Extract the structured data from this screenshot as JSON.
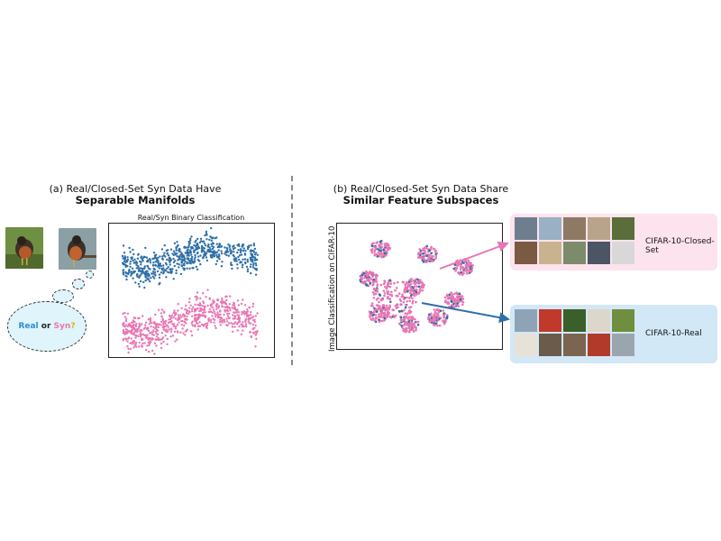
{
  "panel_a": {
    "title_line1": "(a) Real/Closed-Set Syn Data Have",
    "title_line2": "Separable Manifolds",
    "plot_title": "Real/Syn Binary Classification",
    "bubble": {
      "real": "Real",
      "or": "or",
      "syn": "Syn",
      "q": "?"
    }
  },
  "panel_b": {
    "title_line1": "(b) Real/Closed-Set Syn Data Share",
    "title_line2": "Similar Feature Subspaces",
    "axis_label": "Image Classification on CIFAR-10"
  },
  "cards": {
    "closed_set_label": "CIFAR-10-Closed-Set",
    "real_label": "CIFAR-10-Real",
    "closed_colors": [
      "#6d7f8e",
      "#9ab0c4",
      "#8e7a64",
      "#b7a48a",
      "#5b6d3a",
      "#7a5a40",
      "#c9b38e",
      "#7c8c6a",
      "#4b5563",
      "#d8d8d8"
    ],
    "real_colors": [
      "#8ea3b6",
      "#c0392b",
      "#3b5f2a",
      "#dcd6cb",
      "#6f8f3f",
      "#e7e2d8",
      "#6b5b4b",
      "#7b6450",
      "#b23a2a",
      "#9aa5ad"
    ]
  },
  "colors": {
    "blue": "#2f6fa8",
    "pink": "#e877b3",
    "pink_bg": "#fde3ee",
    "blue_bg": "#d3e8f7"
  }
}
